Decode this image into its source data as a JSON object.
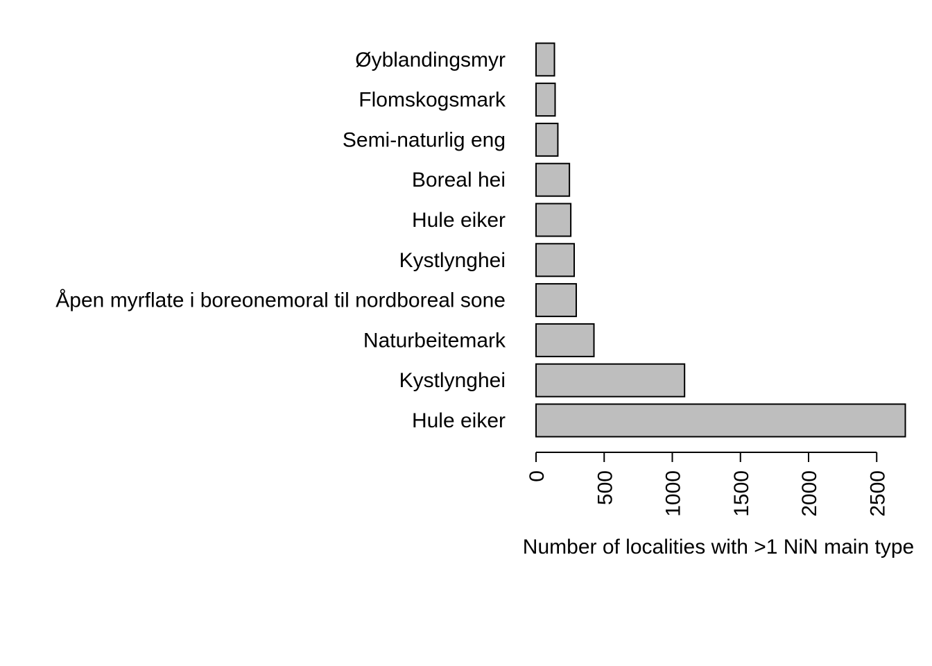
{
  "chart_data": {
    "type": "bar",
    "orientation": "horizontal",
    "categories": [
      "Hule eiker",
      "Kystlynghei",
      "Naturbeitemark",
      "Åpen myrflate i boreonemoral til nordboreal sone",
      "Kystlynghei",
      "Hule eiker",
      "Boreal hei",
      "Semi-naturlig eng",
      "Flomskogsmark",
      "Øyblandingsmyr"
    ],
    "values": [
      2710,
      1090,
      425,
      295,
      280,
      255,
      245,
      160,
      140,
      135
    ],
    "title": "",
    "xlabel": "Number of localities with >1 NiN main type",
    "ylabel": "",
    "xlim": [
      0,
      2710
    ],
    "xticks": [
      0,
      500,
      1000,
      1500,
      2000,
      2500
    ],
    "xtick_labels": [
      "0",
      "500",
      "1000",
      "1500",
      "2000",
      "2500"
    ],
    "grid": false,
    "legend": "none",
    "colors": {
      "bar_fill": "#bebebe",
      "bar_stroke": "#000000",
      "axis": "#000000",
      "text": "#000000"
    }
  }
}
